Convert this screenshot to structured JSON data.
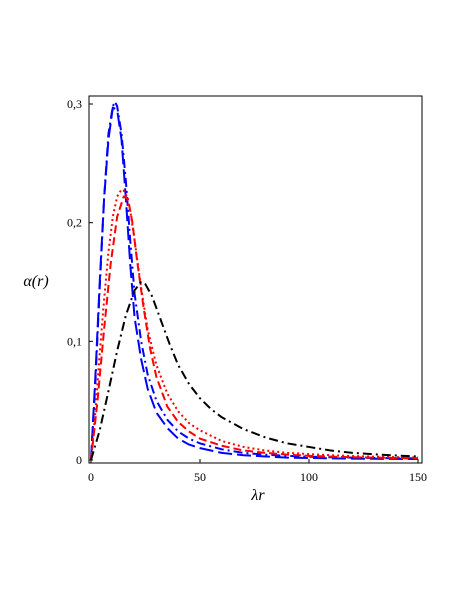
{
  "chart_data": {
    "type": "line",
    "xlabel": "λr",
    "ylabel": "α(r)",
    "xlim": [
      0,
      150
    ],
    "ylim": [
      0,
      0.3
    ],
    "grid": false,
    "x_ticks": [
      0,
      50,
      100,
      150
    ],
    "x_tick_labels": [
      "0",
      "50",
      "100",
      "150"
    ],
    "y_ticks": [
      0,
      0.1,
      0.2,
      0.3
    ],
    "y_tick_labels": [
      "0",
      "0,1",
      "0,2",
      "0,3"
    ],
    "series": [
      {
        "color": "#0000ff",
        "dash": "long-dash",
        "x": [
          0,
          2,
          4,
          6,
          8,
          10,
          12,
          14,
          16,
          18,
          20,
          23,
          26,
          30,
          35,
          40,
          45,
          50,
          60,
          70,
          80,
          90,
          100,
          110,
          120,
          130,
          140,
          150
        ],
        "y": [
          0,
          0.07,
          0.15,
          0.22,
          0.27,
          0.297,
          0.295,
          0.27,
          0.22,
          0.165,
          0.12,
          0.085,
          0.06,
          0.04,
          0.027,
          0.018,
          0.013,
          0.01,
          0.006,
          0.004,
          0.003,
          0.002,
          0.0017,
          0.0014,
          0.0012,
          0.001,
          0.0009,
          0.0008
        ]
      },
      {
        "color": "#0000ff",
        "dash": "dash-dot",
        "x": [
          0,
          2,
          4,
          6,
          8,
          10,
          11,
          12,
          14,
          16,
          18,
          20,
          23,
          26,
          30,
          35,
          40,
          45,
          50,
          60,
          70,
          80,
          90,
          100,
          110,
          120,
          130,
          140,
          150
        ],
        "y": [
          0,
          0.065,
          0.145,
          0.22,
          0.275,
          0.298,
          0.302,
          0.298,
          0.275,
          0.235,
          0.185,
          0.14,
          0.1,
          0.072,
          0.05,
          0.034,
          0.024,
          0.018,
          0.014,
          0.009,
          0.006,
          0.0045,
          0.0035,
          0.0028,
          0.0023,
          0.002,
          0.0017,
          0.0015,
          0.0013
        ]
      },
      {
        "color": "#ff0000",
        "dash": "dash",
        "x": [
          0,
          3,
          6,
          9,
          12,
          15,
          17,
          19,
          21,
          24,
          27,
          30,
          35,
          40,
          45,
          50,
          60,
          70,
          80,
          90,
          100,
          110,
          120,
          130,
          140,
          150
        ],
        "y": [
          0,
          0.05,
          0.11,
          0.165,
          0.205,
          0.222,
          0.22,
          0.2,
          0.17,
          0.13,
          0.095,
          0.07,
          0.045,
          0.032,
          0.024,
          0.018,
          0.012,
          0.008,
          0.006,
          0.0045,
          0.0035,
          0.0028,
          0.0023,
          0.002,
          0.0017,
          0.0015
        ]
      },
      {
        "color": "#ff0000",
        "dash": "dot",
        "x": [
          0,
          2,
          4,
          6,
          8,
          10,
          12,
          14,
          15,
          16,
          18,
          20,
          23,
          26,
          30,
          35,
          40,
          45,
          50,
          60,
          70,
          80,
          90,
          100,
          110,
          120,
          130,
          140,
          150
        ],
        "y": [
          0,
          0.04,
          0.09,
          0.135,
          0.175,
          0.205,
          0.222,
          0.228,
          0.227,
          0.224,
          0.21,
          0.185,
          0.145,
          0.11,
          0.08,
          0.056,
          0.041,
          0.031,
          0.025,
          0.016,
          0.011,
          0.008,
          0.006,
          0.005,
          0.004,
          0.0033,
          0.0028,
          0.0024,
          0.002
        ]
      },
      {
        "color": "#000000",
        "dash": "dash-dot",
        "x": [
          0,
          4,
          8,
          12,
          16,
          20,
          23,
          25,
          28,
          32,
          36,
          40,
          45,
          50,
          55,
          60,
          70,
          80,
          90,
          100,
          110,
          120,
          130,
          140,
          150
        ],
        "y": [
          0,
          0.025,
          0.058,
          0.092,
          0.122,
          0.143,
          0.15,
          0.148,
          0.138,
          0.118,
          0.098,
          0.08,
          0.064,
          0.052,
          0.043,
          0.036,
          0.026,
          0.019,
          0.014,
          0.011,
          0.008,
          0.006,
          0.0048,
          0.0038,
          0.003
        ]
      }
    ]
  }
}
